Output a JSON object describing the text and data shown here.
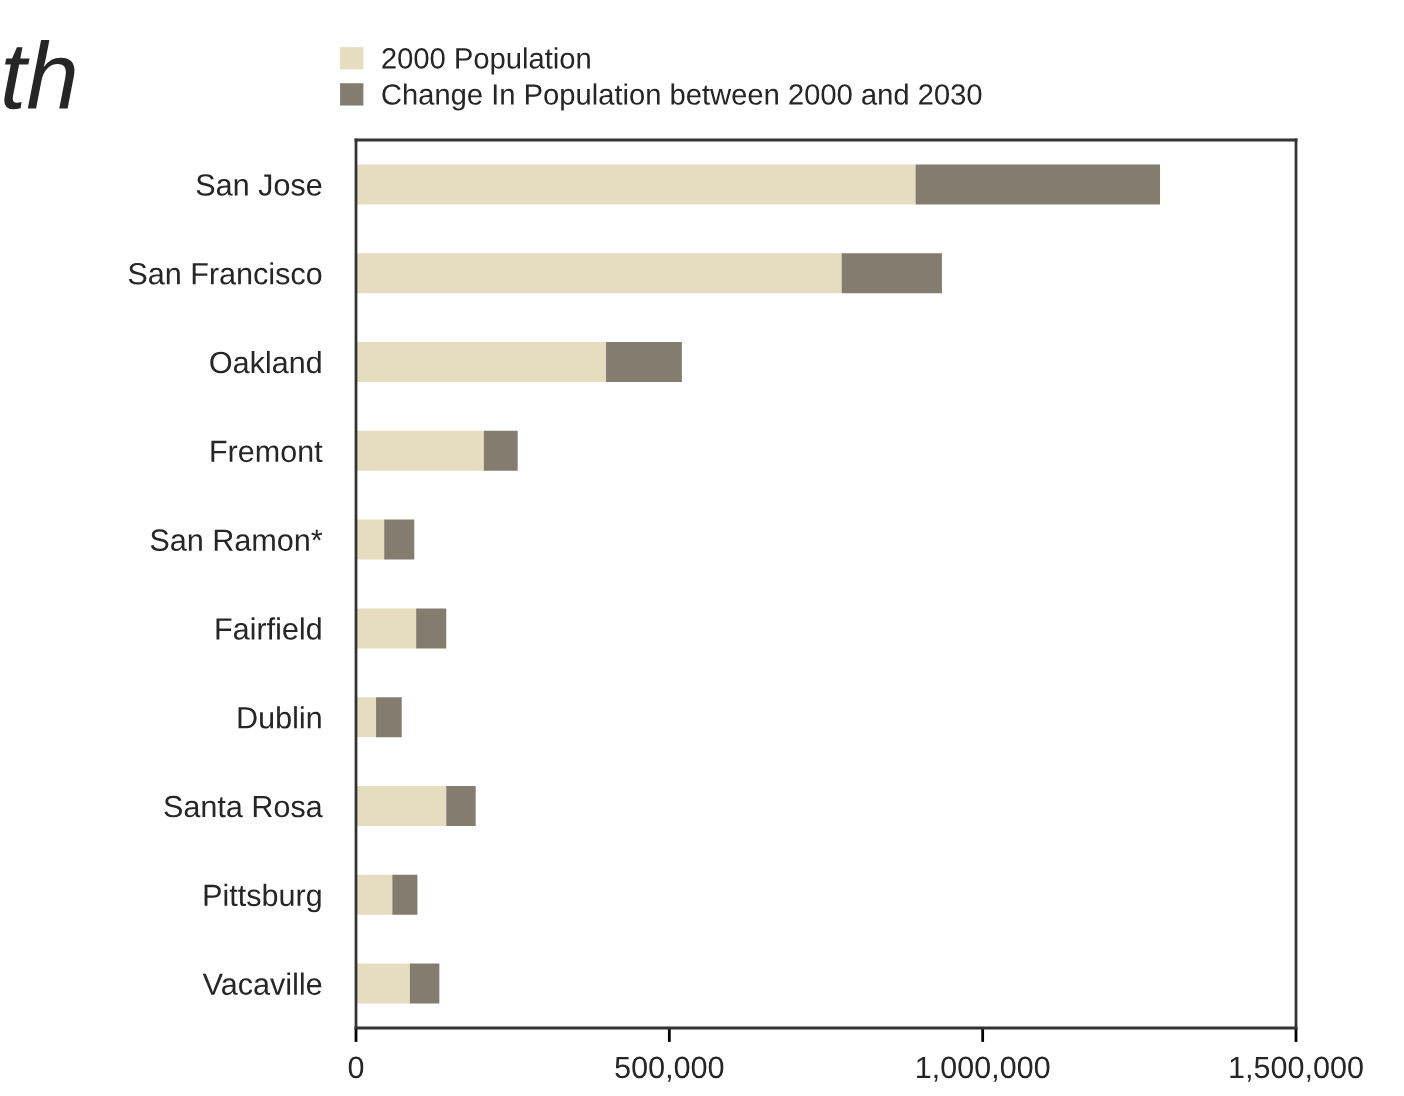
{
  "chart_data": {
    "type": "bar",
    "orientation": "horizontal",
    "stacked": true,
    "title": "th",
    "categories": [
      "San Jose",
      "San Francisco",
      "Oakland",
      "Fremont",
      "San Ramon*",
      "Fairfield",
      "Dublin",
      "Santa Rosa",
      "Pittsburg",
      "Vacaville"
    ],
    "series": [
      {
        "name": "2000 Population",
        "color": "#e6dcc0",
        "values": [
          893000,
          775000,
          399000,
          204000,
          45000,
          96000,
          32000,
          144000,
          58000,
          86000
        ]
      },
      {
        "name": "Change In Population between 2000 and 2030",
        "color": "#857c70",
        "values": [
          390000,
          160000,
          121000,
          54000,
          48000,
          48000,
          41000,
          47000,
          40000,
          47000
        ]
      }
    ],
    "xlim": [
      0,
      1500000
    ],
    "xticks": [
      {
        "value": 0,
        "label": "0"
      },
      {
        "value": 500000,
        "label": "500,000"
      },
      {
        "value": 1000000,
        "label": "1,000,000"
      },
      {
        "value": 1500000,
        "label": "1,500,000"
      }
    ],
    "grid": false,
    "legend": "top"
  }
}
